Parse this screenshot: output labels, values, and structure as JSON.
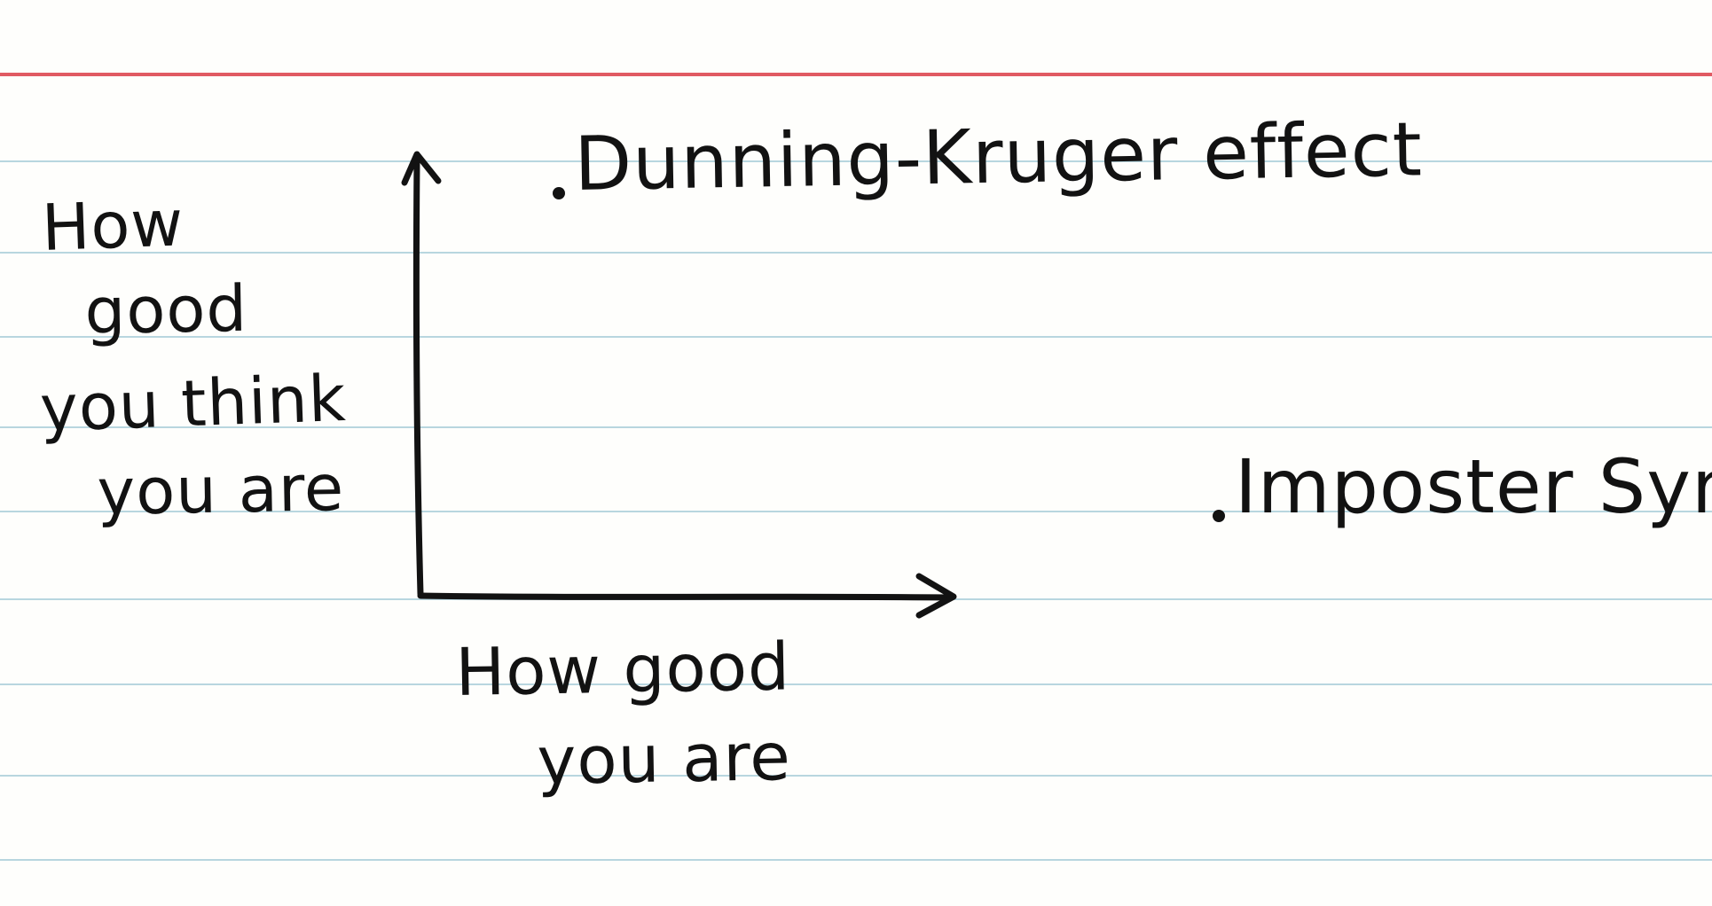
{
  "chart_data": {
    "type": "scatter",
    "title": "",
    "xlabel": [
      "How good",
      "you are"
    ],
    "ylabel": [
      "How",
      "good",
      "you think",
      "you are"
    ],
    "points": [
      {
        "label": "Dunning-Kruger effect",
        "x": 0.1,
        "y": 0.95
      },
      {
        "label": "Imposter Syndrome",
        "x": 0.9,
        "y": 0.2
      }
    ],
    "xlim": [
      0,
      1
    ],
    "ylim": [
      0,
      1
    ],
    "grid": false,
    "legend": "none"
  },
  "colors": {
    "paper": "#fefefc",
    "ruled_lines": "#b8d6df",
    "margin_line": "#e15a63",
    "ink": "#121212"
  }
}
